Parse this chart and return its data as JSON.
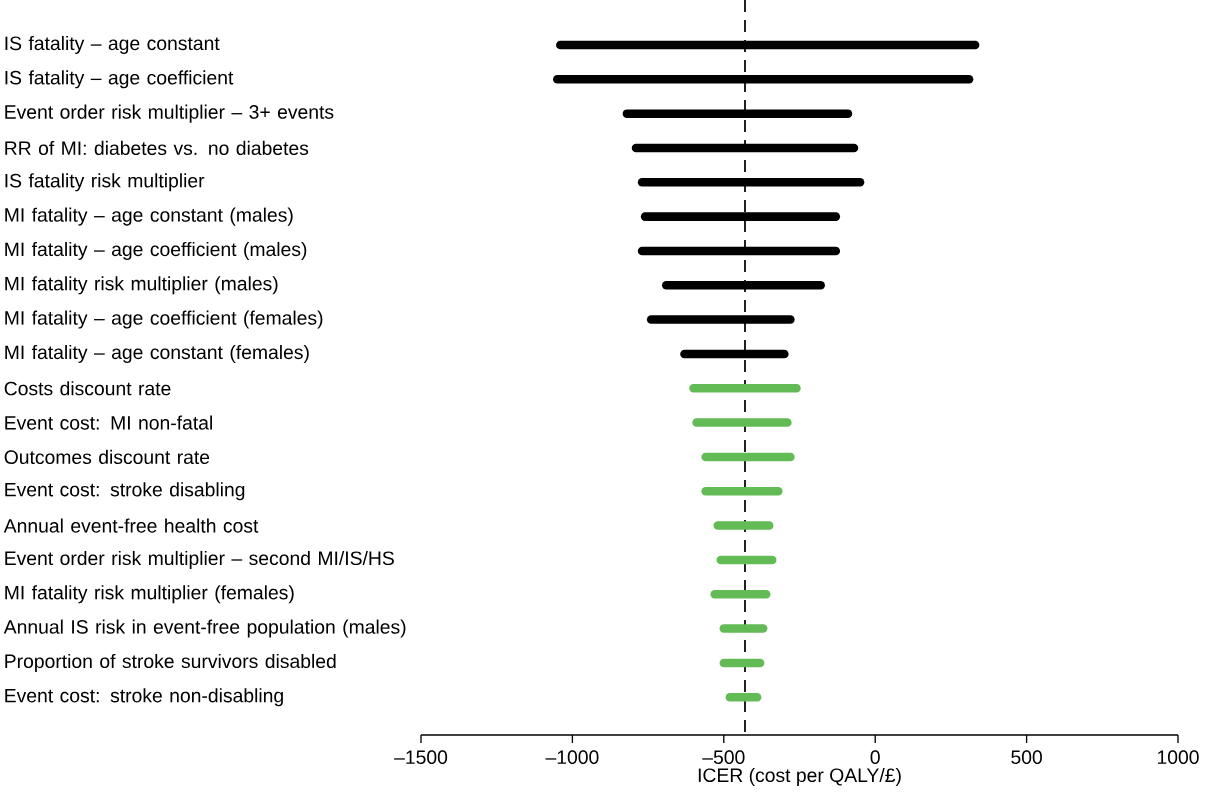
{
  "chart_data": {
    "type": "bar",
    "orientation": "horizontal",
    "xlabel": "ICER (cost per QALY/£)",
    "categories": [
      "IS fatality – age constant",
      "IS fatality – age coefficient",
      "Event order risk multiplier – 3+ events",
      "RR of MI: diabetes vs. no diabetes",
      "IS fatality risk multiplier",
      "MI fatality – age constant (males)",
      "MI fatality – age coefficient (males)",
      "MI fatality risk multiplier (males)",
      "MI fatality – age coefficient (females)",
      "MI fatality – age constant (females)",
      "Costs discount rate",
      "Event cost: MI non-fatal",
      "Outcomes discount rate",
      "Event cost: stroke disabling",
      "Annual event-free health cost",
      "Event order risk multiplier – second MI/IS/HS",
      "MI fatality risk multiplier (females)",
      "Annual IS risk in event-free population (males)",
      "Proportion of stroke survivors disabled",
      "Event cost: stroke non-disabling"
    ],
    "base": [
      -1040,
      -1050,
      -820,
      -790,
      -770,
      -760,
      -770,
      -690,
      -740,
      -630,
      -600,
      -590,
      -560,
      -560,
      -520,
      -510,
      -530,
      -500,
      -500,
      -480
    ],
    "values": [
      1370,
      1360,
      730,
      720,
      720,
      630,
      640,
      510,
      460,
      330,
      340,
      300,
      280,
      240,
      170,
      170,
      170,
      130,
      120,
      90
    ],
    "colors": [
      "#000000",
      "#000000",
      "#000000",
      "#000000",
      "#000000",
      "#000000",
      "#000000",
      "#000000",
      "#000000",
      "#000000",
      "#62bb55",
      "#62bb55",
      "#62bb55",
      "#62bb55",
      "#62bb55",
      "#62bb55",
      "#62bb55",
      "#62bb55",
      "#62bb55",
      "#62bb55"
    ],
    "xlim": [
      -1500,
      1000
    ],
    "xticks": [
      {
        "value": -1500,
        "label": "–1500"
      },
      {
        "value": -1000,
        "label": "–1000"
      },
      {
        "value": -500,
        "label": "–500"
      },
      {
        "value": 0,
        "label": "0"
      },
      {
        "value": 500,
        "label": "500"
      },
      {
        "value": 1000,
        "label": "1000"
      }
    ],
    "ref_lines": [
      {
        "axis": "x",
        "value": -430,
        "line_style": "dashed",
        "color": "#000000"
      }
    ]
  }
}
